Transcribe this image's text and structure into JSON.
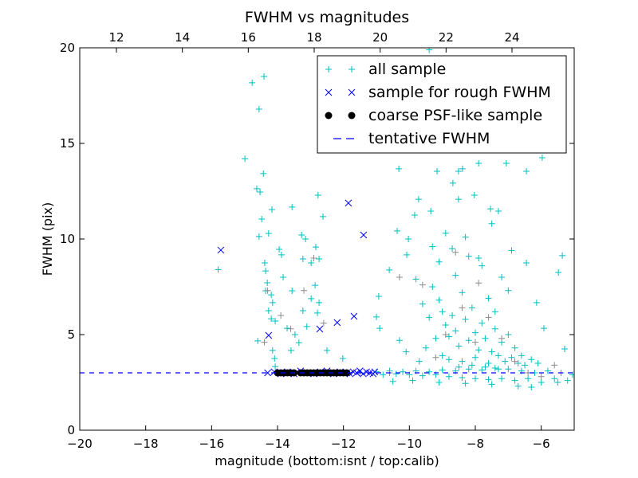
{
  "chart_data": {
    "type": "scatter",
    "title": "FWHM vs magnitudes",
    "xlabel": "magnitude (bottom:isnt / top:calib)",
    "ylabel": "FWHM (pix)",
    "xlim": [
      -20,
      -5
    ],
    "ylim": [
      0,
      20
    ],
    "xticks": [
      -20,
      -18,
      -16,
      -14,
      -12,
      -10,
      -8,
      -6
    ],
    "xtick_labels": [
      "−20",
      "−18",
      "−16",
      "−14",
      "−12",
      "−10",
      "−8",
      "−6"
    ],
    "yticks": [
      0,
      5,
      10,
      15,
      20
    ],
    "ytick_labels": [
      "0",
      "5",
      "10",
      "15",
      "20"
    ],
    "top_axis": {
      "offset": 30.887,
      "ticks": [
        12,
        14,
        16,
        18,
        20,
        22,
        24
      ],
      "tick_labels": [
        "12",
        "14",
        "16",
        "18",
        "20",
        "22",
        "24"
      ]
    },
    "grid": false,
    "legend_position": "top-right",
    "tentative_fwhm": 3.0,
    "legend": [
      {
        "label": "all sample",
        "marker": "plus",
        "color": "#00bfbf"
      },
      {
        "label": "sample for rough FWHM",
        "marker": "x",
        "color": "#0000ff"
      },
      {
        "label": "coarse PSF-like sample",
        "marker": "circle",
        "color": "#000000"
      },
      {
        "label": "tentative FWHM",
        "marker": "dashed-line",
        "color": "#0000ff"
      }
    ],
    "series": [
      {
        "name": "all sample",
        "marker": "plus",
        "color": "#00bfbf",
        "points": [
          [
            -14.77,
            18.17
          ],
          [
            -14.41,
            18.5
          ],
          [
            -14.56,
            16.79
          ],
          [
            -14.99,
            14.2
          ],
          [
            -14.63,
            12.63
          ],
          [
            -14.53,
            12.46
          ],
          [
            -14.48,
            11.04
          ],
          [
            -14.17,
            11.54
          ],
          [
            -14.43,
            13.42
          ],
          [
            -14.27,
            10.29
          ],
          [
            -13.95,
            9.46
          ],
          [
            -13.88,
            9.17
          ],
          [
            -14.39,
            8.75
          ],
          [
            -14.36,
            8.33
          ],
          [
            -14.31,
            7.71
          ],
          [
            -14.36,
            7.29
          ],
          [
            -14.19,
            7.08
          ],
          [
            -14.15,
            6.67
          ],
          [
            -14.27,
            6.25
          ],
          [
            -14.19,
            5.83
          ],
          [
            -14.07,
            5.71
          ],
          [
            -14.6,
            4.67
          ],
          [
            -14.15,
            4.17
          ],
          [
            -14.09,
            3.75
          ],
          [
            -14.07,
            3.33
          ],
          [
            -14.56,
            10.13
          ],
          [
            -15.8,
            8.4
          ],
          [
            -13.56,
            11.67
          ],
          [
            -13.83,
            8.0
          ],
          [
            -13.56,
            7.29
          ],
          [
            -13.27,
            10.21
          ],
          [
            -13.15,
            10.0
          ],
          [
            -12.77,
            12.29
          ],
          [
            -12.62,
            11.17
          ],
          [
            -12.84,
            9.58
          ],
          [
            -13.23,
            8.96
          ],
          [
            -12.98,
            8.75
          ],
          [
            -12.74,
            8.96
          ],
          [
            -12.86,
            7.58
          ],
          [
            -12.98,
            6.88
          ],
          [
            -12.74,
            6.67
          ],
          [
            -13.23,
            6.25
          ],
          [
            -13.11,
            5.42
          ],
          [
            -13.35,
            4.58
          ],
          [
            -13.71,
            5.33
          ],
          [
            -13.47,
            5.0
          ],
          [
            -13.59,
            4.17
          ],
          [
            -12.79,
            6.13
          ],
          [
            -12.5,
            4.17
          ],
          [
            -12.02,
            3.75
          ],
          [
            -10.93,
            7.0
          ],
          [
            -10.61,
            8.38
          ],
          [
            -11.0,
            5.92
          ],
          [
            -10.9,
            5.33
          ],
          [
            -10.32,
            13.67
          ],
          [
            -10.37,
            10.42
          ],
          [
            -10.08,
            9.17
          ],
          [
            -10.03,
            10.0
          ],
          [
            -9.84,
            11.25
          ],
          [
            -9.72,
            12.08
          ],
          [
            -9.35,
            11.46
          ],
          [
            -9.16,
            13.54
          ],
          [
            -8.68,
            12.92
          ],
          [
            -8.51,
            13.54
          ],
          [
            -8.39,
            13.67
          ],
          [
            -7.9,
            13.96
          ],
          [
            -8.51,
            12.08
          ],
          [
            -8.03,
            12.29
          ],
          [
            -7.54,
            11.58
          ],
          [
            -7.3,
            11.46
          ],
          [
            -7.06,
            13.96
          ],
          [
            -6.45,
            13.54
          ],
          [
            -5.97,
            14.25
          ],
          [
            -6.45,
            8.75
          ],
          [
            -5.36,
            9.13
          ],
          [
            -5.48,
            8.25
          ],
          [
            -6.14,
            6.67
          ],
          [
            -5.92,
            5.33
          ],
          [
            -5.29,
            4.25
          ],
          [
            -9.35,
            15.0
          ],
          [
            -9.23,
            16.46
          ],
          [
            -9.4,
            19.9
          ],
          [
            -9.3,
            7.5
          ],
          [
            -9.1,
            6.8
          ],
          [
            -9.0,
            6.2
          ],
          [
            -8.9,
            5.5
          ],
          [
            -8.8,
            4.9
          ],
          [
            -8.7,
            6.0
          ],
          [
            -8.6,
            5.2
          ],
          [
            -8.5,
            4.4
          ],
          [
            -8.4,
            7.2
          ],
          [
            -8.3,
            5.8
          ],
          [
            -8.2,
            4.7
          ],
          [
            -8.1,
            6.4
          ],
          [
            -8.0,
            5.1
          ],
          [
            -7.9,
            4.2
          ],
          [
            -7.8,
            5.6
          ],
          [
            -7.7,
            4.8
          ],
          [
            -7.6,
            6.9
          ],
          [
            -7.5,
            4.1
          ],
          [
            -7.4,
            5.3
          ],
          [
            -7.3,
            3.9
          ],
          [
            -7.2,
            4.6
          ],
          [
            -7.1,
            3.6
          ],
          [
            -7.0,
            5.0
          ],
          [
            -6.9,
            3.8
          ],
          [
            -6.8,
            4.3
          ],
          [
            -6.7,
            3.5
          ],
          [
            -6.6,
            3.9
          ],
          [
            -6.5,
            3.4
          ],
          [
            -6.3,
            3.7
          ],
          [
            -6.1,
            3.5
          ],
          [
            -9.4,
            5.9
          ],
          [
            -9.2,
            4.8
          ],
          [
            -9.0,
            3.9
          ],
          [
            -8.8,
            3.7
          ],
          [
            -8.6,
            8.1
          ],
          [
            -8.4,
            3.6
          ],
          [
            -8.2,
            9.1
          ],
          [
            -8.0,
            3.8
          ],
          [
            -7.8,
            8.6
          ],
          [
            -7.6,
            3.5
          ],
          [
            -7.4,
            6.2
          ],
          [
            -9.5,
            4.3
          ],
          [
            -9.6,
            6.6
          ],
          [
            -9.3,
            9.6
          ],
          [
            -9.1,
            8.8
          ],
          [
            -8.9,
            10.3
          ],
          [
            -8.7,
            9.5
          ],
          [
            -8.3,
            10.1
          ],
          [
            -7.9,
            9.0
          ],
          [
            -7.5,
            10.8
          ],
          [
            -7.2,
            8.0
          ],
          [
            -7.0,
            7.3
          ],
          [
            -6.9,
            9.4
          ],
          [
            -9.8,
            7.9
          ],
          [
            -10.1,
            4.1
          ],
          [
            -10.3,
            4.7
          ],
          [
            -9.7,
            3.6
          ],
          [
            -8.5,
            3.3
          ],
          [
            -8.1,
            3.4
          ],
          [
            -7.7,
            3.3
          ],
          [
            -7.3,
            3.2
          ],
          [
            -11.0,
            3.05
          ],
          [
            -10.8,
            2.9
          ],
          [
            -10.6,
            3.1
          ],
          [
            -10.4,
            2.95
          ],
          [
            -10.2,
            3.05
          ],
          [
            -10.0,
            2.9
          ],
          [
            -9.8,
            3.1
          ],
          [
            -9.6,
            2.85
          ],
          [
            -9.4,
            3.05
          ],
          [
            -9.2,
            2.9
          ],
          [
            -9.0,
            3.15
          ],
          [
            -8.8,
            2.8
          ],
          [
            -8.6,
            3.1
          ],
          [
            -8.4,
            2.75
          ],
          [
            -8.2,
            3.2
          ],
          [
            -8.0,
            2.7
          ],
          [
            -7.8,
            3.15
          ],
          [
            -7.6,
            2.65
          ],
          [
            -7.4,
            3.25
          ],
          [
            -7.2,
            2.7
          ],
          [
            -7.0,
            3.2
          ],
          [
            -6.8,
            2.6
          ],
          [
            -6.6,
            3.1
          ],
          [
            -6.4,
            2.7
          ],
          [
            -6.2,
            3.0
          ],
          [
            -6.0,
            2.5
          ],
          [
            -5.8,
            3.1
          ],
          [
            -5.6,
            2.7
          ],
          [
            -5.4,
            3.0
          ],
          [
            -5.2,
            2.6
          ],
          [
            -5.05,
            2.9
          ],
          [
            -10.5,
            2.55
          ],
          [
            -9.9,
            2.6
          ],
          [
            -9.1,
            2.5
          ],
          [
            -8.3,
            2.45
          ],
          [
            -7.5,
            2.4
          ],
          [
            -6.7,
            2.3
          ],
          [
            -6.3,
            2.25
          ],
          [
            -5.5,
            2.5
          ],
          [
            -11.5,
            3.0
          ],
          [
            -12.0,
            3.0
          ],
          [
            -13.0,
            3.0
          ]
        ]
      },
      {
        "name": "all sample (grey)",
        "marker": "plus",
        "color": "#8c8c8c",
        "points": [
          [
            -14.3,
            7.3
          ],
          [
            -13.9,
            6.0
          ],
          [
            -13.2,
            7.3
          ],
          [
            -12.9,
            9.0
          ],
          [
            -12.6,
            5.6
          ],
          [
            -10.3,
            8.0
          ],
          [
            -9.6,
            7.6
          ],
          [
            -8.9,
            5.0
          ],
          [
            -8.4,
            6.4
          ],
          [
            -8.0,
            4.6
          ],
          [
            -7.6,
            5.9
          ],
          [
            -7.2,
            4.8
          ],
          [
            -6.8,
            3.6
          ],
          [
            -6.4,
            3.0
          ],
          [
            -9.2,
            3.8
          ],
          [
            -8.6,
            9.3
          ],
          [
            -7.9,
            7.7
          ],
          [
            -10.6,
            3.0
          ],
          [
            -6.0,
            2.8
          ],
          [
            -5.6,
            3.4
          ],
          [
            -14.4,
            4.6
          ],
          [
            -13.6,
            5.3
          ]
        ]
      },
      {
        "name": "sample for rough FWHM",
        "marker": "x",
        "color": "#0000ff",
        "points": [
          [
            -15.72,
            9.42
          ],
          [
            -14.27,
            4.96
          ],
          [
            -11.85,
            11.88
          ],
          [
            -11.39,
            10.21
          ],
          [
            -11.68,
            5.96
          ],
          [
            -12.19,
            5.63
          ],
          [
            -12.72,
            5.29
          ],
          [
            -14.3,
            3.0
          ],
          [
            -14.1,
            3.05
          ],
          [
            -13.9,
            2.95
          ],
          [
            -13.7,
            3.05
          ],
          [
            -13.5,
            2.95
          ],
          [
            -13.3,
            3.1
          ],
          [
            -13.1,
            3.0
          ],
          [
            -12.9,
            2.95
          ],
          [
            -12.7,
            3.05
          ],
          [
            -12.5,
            3.1
          ],
          [
            -12.3,
            2.95
          ],
          [
            -12.1,
            3.05
          ],
          [
            -11.9,
            3.0
          ],
          [
            -11.8,
            2.95
          ],
          [
            -11.7,
            3.05
          ],
          [
            -11.6,
            3.0
          ],
          [
            -11.5,
            3.1
          ],
          [
            -11.4,
            2.95
          ],
          [
            -11.3,
            3.05
          ],
          [
            -11.2,
            3.0
          ],
          [
            -11.1,
            2.95
          ],
          [
            -11.05,
            3.05
          ]
        ]
      },
      {
        "name": "coarse PSF-like sample",
        "marker": "circle",
        "color": "#000000",
        "points": [
          [
            -14.0,
            3.0
          ],
          [
            -13.9,
            3.0
          ],
          [
            -13.8,
            3.0
          ],
          [
            -13.7,
            3.0
          ],
          [
            -13.6,
            3.0
          ],
          [
            -13.5,
            3.0
          ],
          [
            -13.3,
            3.0
          ],
          [
            -13.2,
            3.0
          ],
          [
            -13.1,
            3.0
          ],
          [
            -13.0,
            3.0
          ],
          [
            -12.9,
            3.0
          ],
          [
            -12.8,
            3.0
          ],
          [
            -12.7,
            3.0
          ],
          [
            -12.6,
            3.0
          ],
          [
            -12.5,
            3.0
          ],
          [
            -12.4,
            3.0
          ],
          [
            -12.3,
            3.0
          ],
          [
            -12.2,
            3.0
          ],
          [
            -12.1,
            3.0
          ],
          [
            -12.0,
            3.0
          ],
          [
            -11.9,
            3.0
          ]
        ]
      }
    ]
  }
}
